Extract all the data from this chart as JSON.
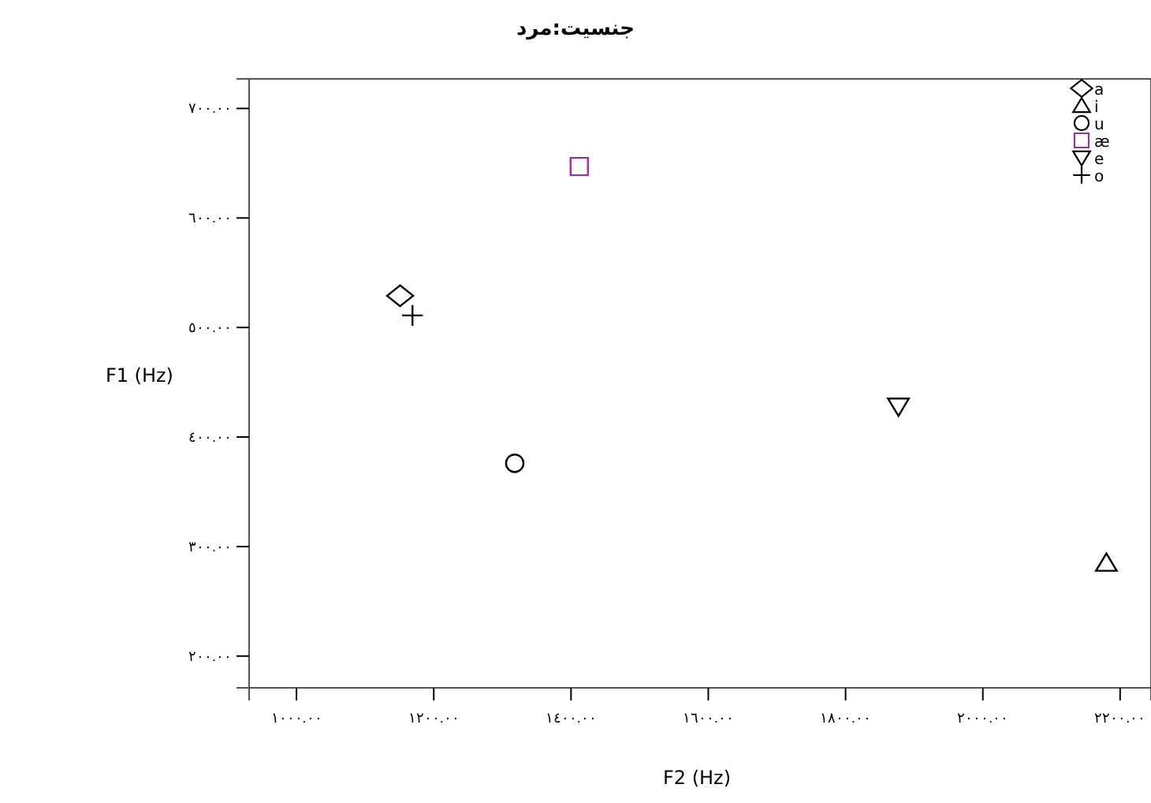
{
  "chart_data": {
    "type": "scatter",
    "title": "جنسیت:مرد",
    "xlabel": "F2 (Hz)",
    "ylabel": "F1 (Hz)",
    "xlim": [
      931,
      2245
    ],
    "ylim": [
      171,
      727
    ],
    "xticks": [
      {
        "value": 1000,
        "label": "١٠٠٠.٠٠"
      },
      {
        "value": 1200,
        "label": "١٢٠٠.٠٠"
      },
      {
        "value": 1400,
        "label": "١٤٠٠.٠٠"
      },
      {
        "value": 1600,
        "label": "١٦٠٠.٠٠"
      },
      {
        "value": 1800,
        "label": "١٨٠٠.٠٠"
      },
      {
        "value": 2000,
        "label": "٢٠٠٠.٠٠"
      },
      {
        "value": 2200,
        "label": "٢٢٠٠.٠٠"
      }
    ],
    "yticks": [
      {
        "value": 200,
        "label": "٢٠٠.٠٠"
      },
      {
        "value": 300,
        "label": "٣٠٠.٠٠"
      },
      {
        "value": 400,
        "label": "٤٠٠.٠٠"
      },
      {
        "value": 500,
        "label": "٥٠٠.٠٠"
      },
      {
        "value": 600,
        "label": "٦٠٠.٠٠"
      },
      {
        "value": 700,
        "label": "٧٠٠.٠٠"
      }
    ],
    "grid": false,
    "legend": "top right",
    "series": [
      {
        "name": "a",
        "color": "#000000",
        "marker": "diamond",
        "x": [
          1151
        ],
        "values": [
          529
        ]
      },
      {
        "name": "i",
        "color": "#000000",
        "marker": "triangle",
        "x": [
          2180
        ],
        "values": [
          285
        ]
      },
      {
        "name": "u",
        "color": "#000000",
        "marker": "circle",
        "x": [
          1318
        ],
        "values": [
          376
        ]
      },
      {
        "name": "æ",
        "color": "#993399",
        "marker": "square",
        "x": [
          1412
        ],
        "values": [
          647
        ]
      },
      {
        "name": "e",
        "color": "#000000",
        "marker": "triangle-down",
        "x": [
          1877
        ],
        "values": [
          428
        ]
      },
      {
        "name": "o",
        "color": "#000000",
        "marker": "cross",
        "x": [
          1169
        ],
        "values": [
          511
        ]
      }
    ]
  }
}
